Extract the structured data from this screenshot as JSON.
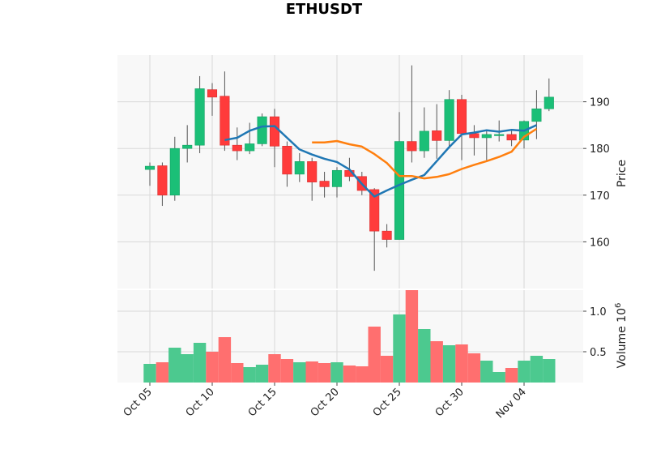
{
  "chart_data": {
    "type": "candlestick",
    "title": "ETHUSDT",
    "x_ticks": [
      "Oct 05",
      "Oct 10",
      "Oct 15",
      "Oct 20",
      "Oct 25",
      "Oct 30",
      "Nov 04"
    ],
    "price_panel": {
      "ylabel": "Price",
      "ylim": [
        150,
        200
      ],
      "yticks": [
        160,
        170,
        180,
        190
      ],
      "grid": true,
      "candles": [
        {
          "date": "Oct 04",
          "open": 175.5,
          "high": 177.0,
          "low": 172.0,
          "close": 176.2
        },
        {
          "date": "Oct 05",
          "open": 176.3,
          "high": 177.0,
          "low": 167.7,
          "close": 170.0
        },
        {
          "date": "Oct 06",
          "open": 170.0,
          "high": 182.5,
          "low": 168.8,
          "close": 180.0
        },
        {
          "date": "Oct 07",
          "open": 180.0,
          "high": 185.0,
          "low": 177.0,
          "close": 180.7
        },
        {
          "date": "Oct 08",
          "open": 180.7,
          "high": 195.5,
          "low": 179.0,
          "close": 192.8
        },
        {
          "date": "Oct 09",
          "open": 192.6,
          "high": 194.0,
          "low": 187.0,
          "close": 191.0
        },
        {
          "date": "Oct 10",
          "open": 191.2,
          "high": 196.5,
          "low": 179.5,
          "close": 180.7
        },
        {
          "date": "Oct 11",
          "open": 180.7,
          "high": 184.5,
          "low": 177.5,
          "close": 179.5
        },
        {
          "date": "Oct 12",
          "open": 179.5,
          "high": 185.5,
          "low": 178.8,
          "close": 181.0
        },
        {
          "date": "Oct 13",
          "open": 181.0,
          "high": 187.5,
          "low": 180.5,
          "close": 186.8
        },
        {
          "date": "Oct 14",
          "open": 186.8,
          "high": 188.5,
          "low": 176.0,
          "close": 180.5
        },
        {
          "date": "Oct 15",
          "open": 180.5,
          "high": 181.5,
          "low": 171.8,
          "close": 174.5
        },
        {
          "date": "Oct 16",
          "open": 174.5,
          "high": 179.0,
          "low": 172.8,
          "close": 177.2
        },
        {
          "date": "Oct 17",
          "open": 177.2,
          "high": 178.0,
          "low": 168.8,
          "close": 172.8
        },
        {
          "date": "Oct 18",
          "open": 173.0,
          "high": 175.0,
          "low": 169.5,
          "close": 171.8
        },
        {
          "date": "Oct 19",
          "open": 171.8,
          "high": 176.0,
          "low": 169.5,
          "close": 175.3
        },
        {
          "date": "Oct 20",
          "open": 175.3,
          "high": 178.0,
          "low": 173.0,
          "close": 174.0
        },
        {
          "date": "Oct 21",
          "open": 174.0,
          "high": 175.0,
          "low": 170.0,
          "close": 171.0
        },
        {
          "date": "Oct 22",
          "open": 171.2,
          "high": 171.5,
          "low": 153.8,
          "close": 162.3
        },
        {
          "date": "Oct 23",
          "open": 162.3,
          "high": 163.8,
          "low": 158.8,
          "close": 160.5
        },
        {
          "date": "Oct 24",
          "open": 160.5,
          "high": 187.8,
          "low": 160.5,
          "close": 181.5
        },
        {
          "date": "Oct 25",
          "open": 181.5,
          "high": 197.8,
          "low": 177.0,
          "close": 179.5
        },
        {
          "date": "Oct 26",
          "open": 179.5,
          "high": 188.8,
          "low": 178.0,
          "close": 183.7
        },
        {
          "date": "Oct 27",
          "open": 183.8,
          "high": 189.5,
          "low": 177.8,
          "close": 181.7
        },
        {
          "date": "Oct 28",
          "open": 181.7,
          "high": 192.5,
          "low": 180.0,
          "close": 190.5
        },
        {
          "date": "Oct 29",
          "open": 190.5,
          "high": 191.5,
          "low": 177.5,
          "close": 183.2
        },
        {
          "date": "Oct 30",
          "open": 183.2,
          "high": 185.0,
          "low": 178.5,
          "close": 182.3
        },
        {
          "date": "Oct 31",
          "open": 182.3,
          "high": 184.0,
          "low": 177.5,
          "close": 183.0
        },
        {
          "date": "Nov 01",
          "open": 183.0,
          "high": 186.0,
          "low": 181.5,
          "close": 183.0
        },
        {
          "date": "Nov 02",
          "open": 183.0,
          "high": 184.0,
          "low": 180.5,
          "close": 181.8
        },
        {
          "date": "Nov 03",
          "open": 181.8,
          "high": 186.0,
          "low": 180.0,
          "close": 185.8
        },
        {
          "date": "Nov 04",
          "open": 185.8,
          "high": 192.5,
          "low": 182.0,
          "close": 188.5
        },
        {
          "date": "Nov 05",
          "open": 188.5,
          "high": 195.0,
          "low": 188.0,
          "close": 191.0
        }
      ],
      "moving_averages": [
        {
          "color": "#1f77b4",
          "start_index": 6,
          "values": [
            181.8,
            182.3,
            183.8,
            184.7,
            184.8,
            182.3,
            179.8,
            178.7,
            177.8,
            177.1,
            175.5,
            172.4,
            169.7,
            171.0,
            172.2,
            173.3,
            174.3,
            177.3,
            180.3,
            183.0,
            183.4,
            183.9,
            183.6,
            184.0,
            183.8,
            185.0
          ]
        },
        {
          "color": "#ff7f0e",
          "start_index": 13,
          "values": [
            181.3,
            181.3,
            181.6,
            180.9,
            180.4,
            178.8,
            176.9,
            174.1,
            174.1,
            173.6,
            173.9,
            174.5,
            175.6,
            176.5,
            177.3,
            178.2,
            179.3,
            182.5,
            184.2
          ]
        }
      ]
    },
    "volume_panel": {
      "ylabel": "Volume  10",
      "exponent": "6",
      "ylim": [
        0.12,
        1.26
      ],
      "yticks": [
        0.5,
        1.0
      ],
      "yticklabels": [
        "0.5",
        "1.0"
      ],
      "volumes": [
        0.35,
        0.37,
        0.55,
        0.47,
        0.61,
        0.5,
        0.68,
        0.36,
        0.31,
        0.34,
        0.47,
        0.41,
        0.37,
        0.38,
        0.36,
        0.37,
        0.33,
        0.32,
        0.81,
        0.45,
        0.96,
        1.26,
        0.78,
        0.63,
        0.58,
        0.59,
        0.48,
        0.39,
        0.25,
        0.3,
        0.39,
        0.45,
        0.41
      ]
    },
    "colors": {
      "up": "#1bbf77",
      "down": "#ff3b3b",
      "vol_up": "#4cc98f",
      "vol_down": "#ff6f6f",
      "panel_bg": "#f8f8f8",
      "grid": "#d9d9d9"
    }
  }
}
